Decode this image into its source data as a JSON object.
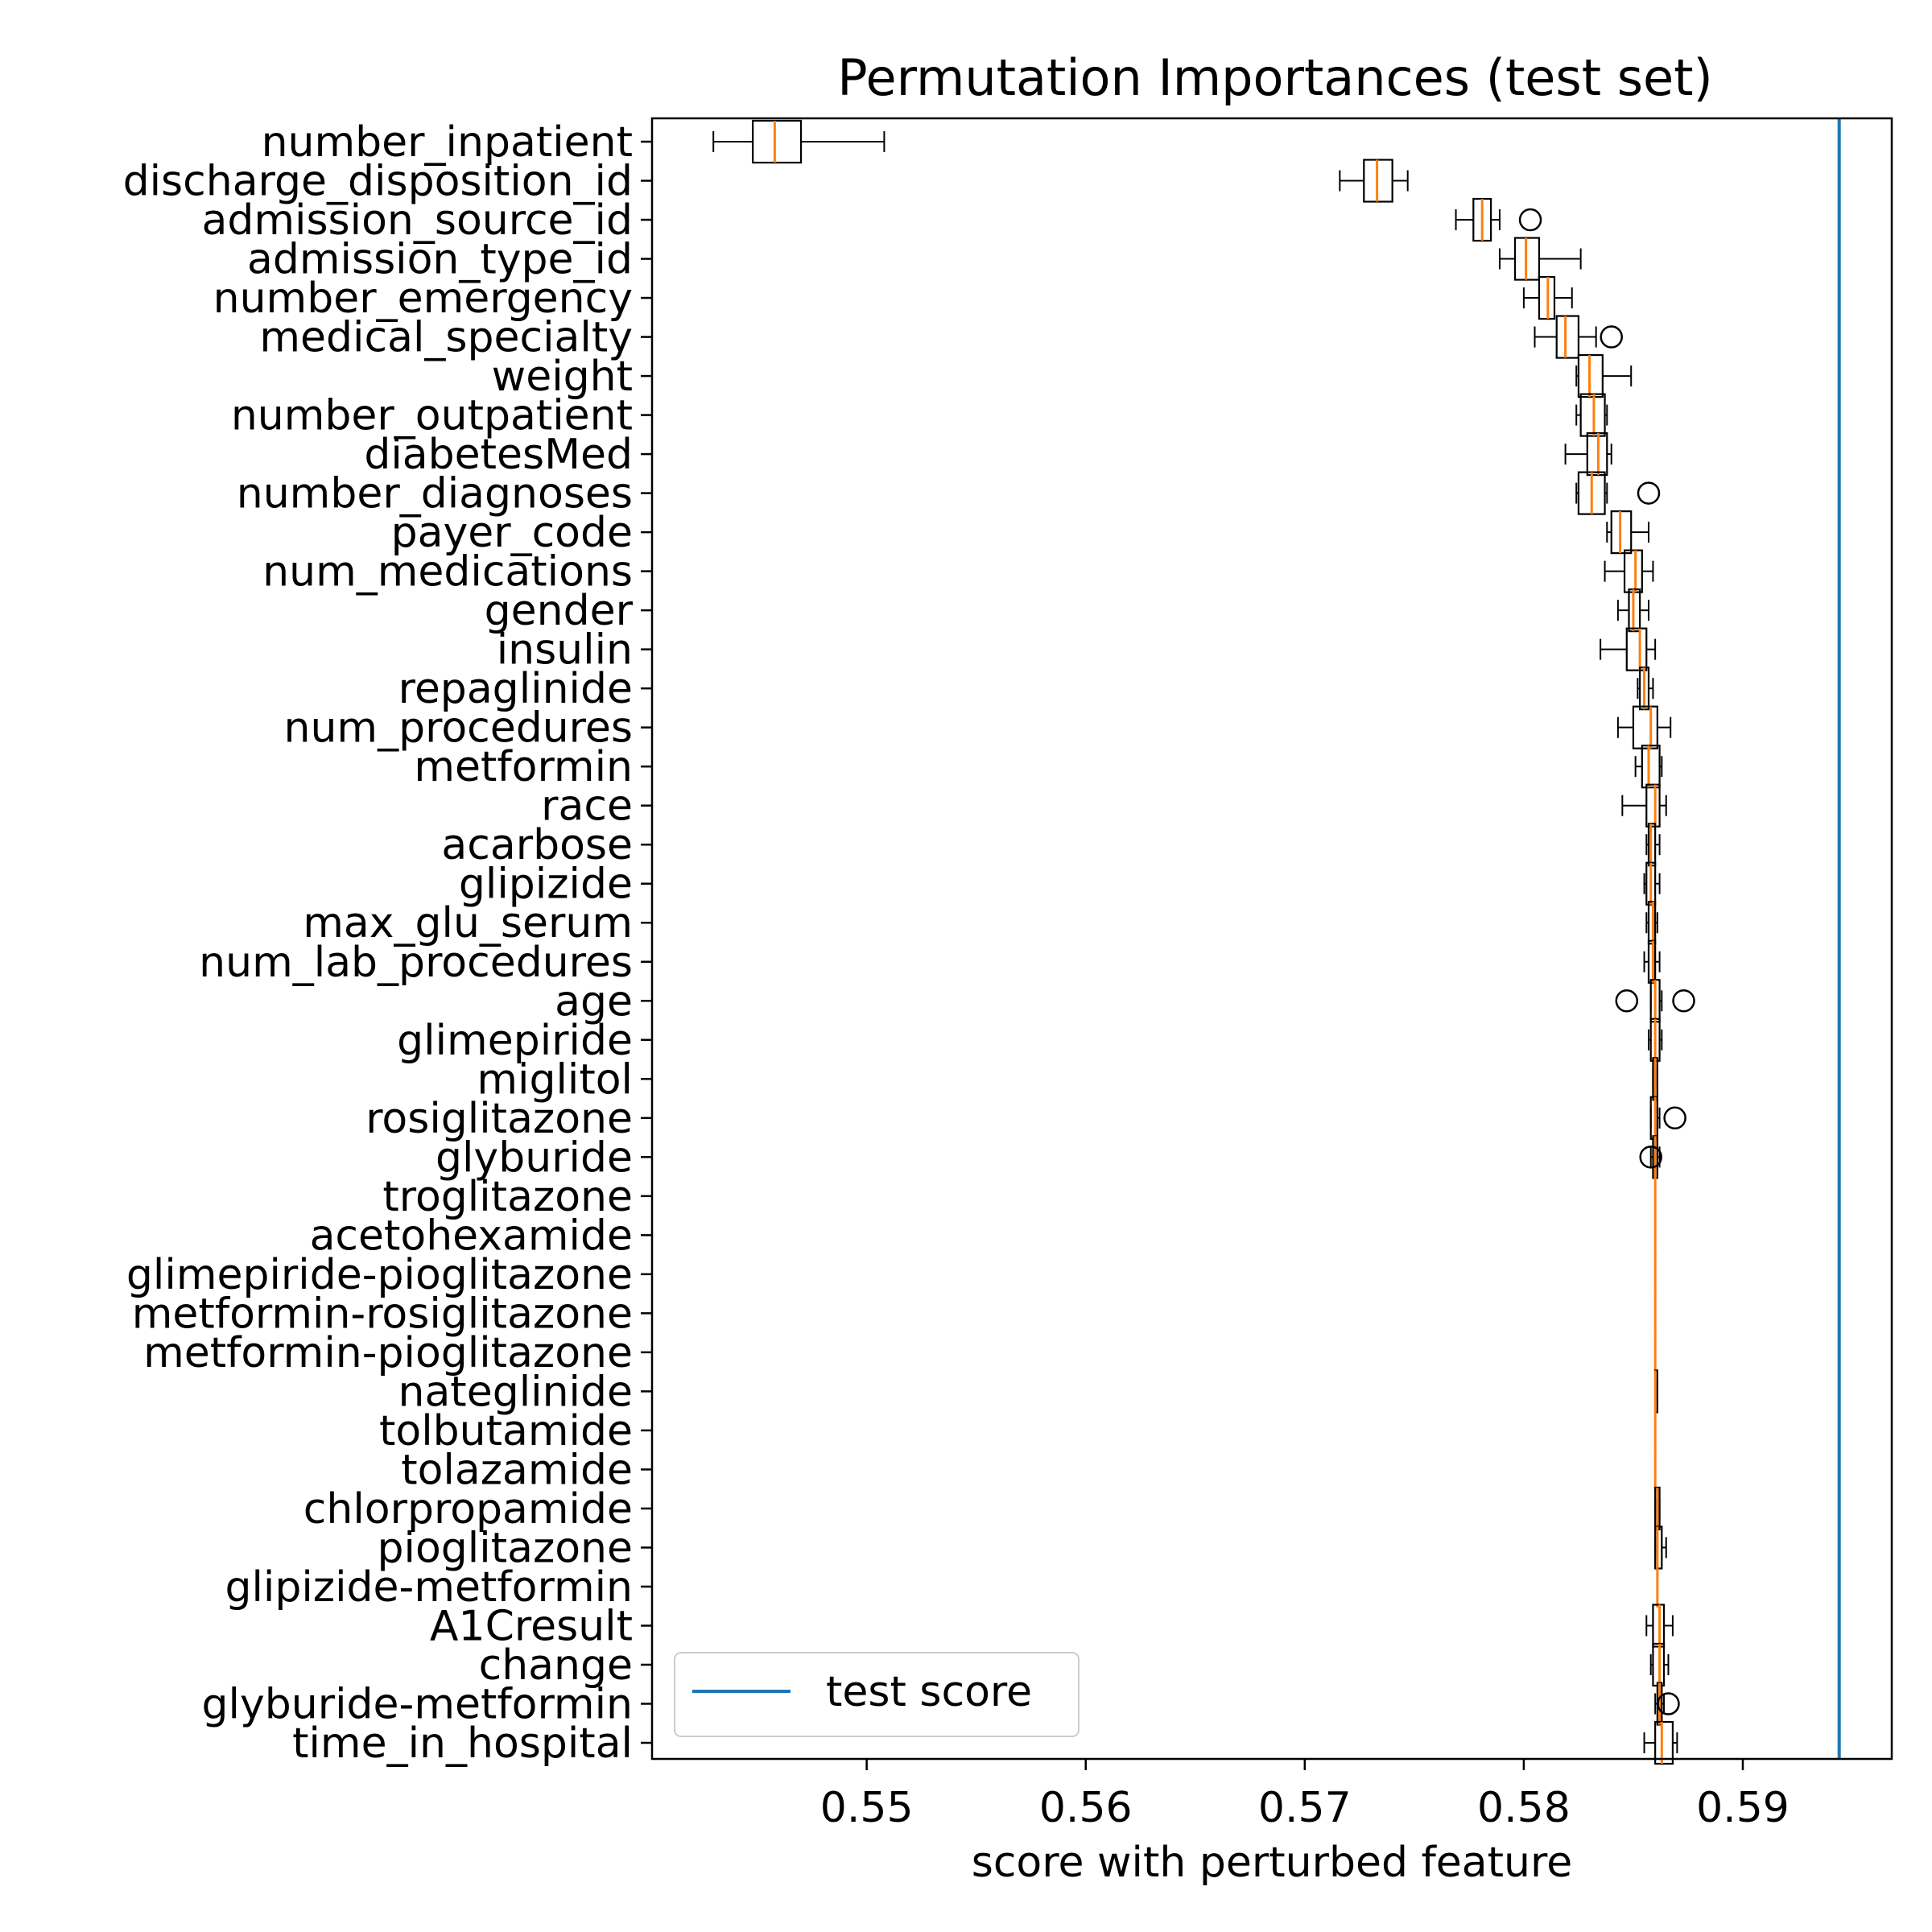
{
  "chart_data": {
    "type": "boxplot",
    "orientation": "horizontal",
    "title": "Permutation Importances (test set)",
    "xlabel": "score with perturbed feature",
    "ylabel": "",
    "xlim": [
      0.5402,
      0.5968
    ],
    "xticks": [
      0.55,
      0.56,
      0.57,
      0.58,
      0.59
    ],
    "xtick_labels": [
      "0.55",
      "0.56",
      "0.57",
      "0.58",
      "0.59"
    ],
    "grid": false,
    "reference_line": {
      "x": 0.5944,
      "label": "test score",
      "color": "#1f77b4"
    },
    "legend": {
      "position": "lower-left",
      "entries": [
        "test score"
      ]
    },
    "colors": {
      "box": "#000000",
      "median": "#ff7f0e",
      "reference": "#1f77b4"
    },
    "features": [
      {
        "name": "number_inpatient",
        "wlo": 0.543,
        "q1": 0.5448,
        "med": 0.5458,
        "q3": 0.547,
        "whi": 0.5508,
        "fliers": []
      },
      {
        "name": "discharge_disposition_id",
        "wlo": 0.5716,
        "q1": 0.5727,
        "med": 0.5733,
        "q3": 0.574,
        "whi": 0.5747,
        "fliers": []
      },
      {
        "name": "admission_source_id",
        "wlo": 0.5769,
        "q1": 0.5777,
        "med": 0.5781,
        "q3": 0.5785,
        "whi": 0.5789,
        "fliers": [
          0.5803
        ]
      },
      {
        "name": "admission_type_id",
        "wlo": 0.5789,
        "q1": 0.5796,
        "med": 0.5801,
        "q3": 0.5807,
        "whi": 0.5826,
        "fliers": []
      },
      {
        "name": "number_emergency",
        "wlo": 0.58,
        "q1": 0.5807,
        "med": 0.5811,
        "q3": 0.5814,
        "whi": 0.5822,
        "fliers": []
      },
      {
        "name": "medical_specialty",
        "wlo": 0.5805,
        "q1": 0.5815,
        "med": 0.5819,
        "q3": 0.5825,
        "whi": 0.5833,
        "fliers": [
          0.584
        ]
      },
      {
        "name": "weight",
        "wlo": 0.5824,
        "q1": 0.5825,
        "med": 0.583,
        "q3": 0.5836,
        "whi": 0.5849,
        "fliers": []
      },
      {
        "name": "number_outpatient",
        "wlo": 0.5824,
        "q1": 0.5826,
        "med": 0.5832,
        "q3": 0.5837,
        "whi": 0.5838,
        "fliers": []
      },
      {
        "name": "diabetesMed",
        "wlo": 0.5819,
        "q1": 0.5829,
        "med": 0.5834,
        "q3": 0.5838,
        "whi": 0.584,
        "fliers": []
      },
      {
        "name": "number_diagnoses",
        "wlo": 0.5824,
        "q1": 0.5825,
        "med": 0.5831,
        "q3": 0.5837,
        "whi": 0.5838,
        "fliers": [
          0.5857
        ]
      },
      {
        "name": "payer_code",
        "wlo": 0.5838,
        "q1": 0.584,
        "med": 0.5844,
        "q3": 0.5849,
        "whi": 0.5857,
        "fliers": []
      },
      {
        "name": "num_medications",
        "wlo": 0.5837,
        "q1": 0.5846,
        "med": 0.5851,
        "q3": 0.5854,
        "whi": 0.5859,
        "fliers": []
      },
      {
        "name": "gender",
        "wlo": 0.5843,
        "q1": 0.5848,
        "med": 0.585,
        "q3": 0.5853,
        "whi": 0.5857,
        "fliers": []
      },
      {
        "name": "insulin",
        "wlo": 0.5835,
        "q1": 0.5847,
        "med": 0.5853,
        "q3": 0.5856,
        "whi": 0.586,
        "fliers": []
      },
      {
        "name": "repaglinide",
        "wlo": 0.5852,
        "q1": 0.5853,
        "med": 0.5855,
        "q3": 0.5857,
        "whi": 0.5859,
        "fliers": []
      },
      {
        "name": "num_procedures",
        "wlo": 0.5843,
        "q1": 0.585,
        "med": 0.5858,
        "q3": 0.5861,
        "whi": 0.5867,
        "fliers": []
      },
      {
        "name": "metformin",
        "wlo": 0.5851,
        "q1": 0.5854,
        "med": 0.5857,
        "q3": 0.5862,
        "whi": 0.5863,
        "fliers": []
      },
      {
        "name": "race",
        "wlo": 0.5845,
        "q1": 0.5856,
        "med": 0.586,
        "q3": 0.5862,
        "whi": 0.5865,
        "fliers": []
      },
      {
        "name": "acarbose",
        "wlo": 0.5856,
        "q1": 0.5857,
        "med": 0.5858,
        "q3": 0.586,
        "whi": 0.5862,
        "fliers": []
      },
      {
        "name": "glipizide",
        "wlo": 0.5855,
        "q1": 0.5856,
        "med": 0.5858,
        "q3": 0.586,
        "whi": 0.5862,
        "fliers": []
      },
      {
        "name": "max_glu_serum",
        "wlo": 0.5856,
        "q1": 0.5857,
        "med": 0.5859,
        "q3": 0.586,
        "whi": 0.5861,
        "fliers": []
      },
      {
        "name": "num_lab_procedures",
        "wlo": 0.5855,
        "q1": 0.5857,
        "med": 0.5859,
        "q3": 0.586,
        "whi": 0.5862,
        "fliers": []
      },
      {
        "name": "age",
        "wlo": 0.5858,
        "q1": 0.5858,
        "med": 0.586,
        "q3": 0.5862,
        "whi": 0.5863,
        "fliers": [
          0.5847,
          0.5873
        ]
      },
      {
        "name": "glimepiride",
        "wlo": 0.5857,
        "q1": 0.5858,
        "med": 0.586,
        "q3": 0.5862,
        "whi": 0.5863,
        "fliers": []
      },
      {
        "name": "miglitol",
        "wlo": 0.5859,
        "q1": 0.5859,
        "med": 0.586,
        "q3": 0.5861,
        "whi": 0.5861,
        "fliers": []
      },
      {
        "name": "rosiglitazone",
        "wlo": 0.5858,
        "q1": 0.5858,
        "med": 0.586,
        "q3": 0.5861,
        "whi": 0.5862,
        "fliers": [
          0.5869
        ]
      },
      {
        "name": "glyburide",
        "wlo": 0.5858,
        "q1": 0.5859,
        "med": 0.586,
        "q3": 0.5861,
        "whi": 0.5862,
        "fliers": [
          0.5858
        ]
      },
      {
        "name": "troglitazone",
        "wlo": 0.586,
        "q1": 0.586,
        "med": 0.586,
        "q3": 0.586,
        "whi": 0.586,
        "fliers": []
      },
      {
        "name": "acetohexamide",
        "wlo": 0.586,
        "q1": 0.586,
        "med": 0.586,
        "q3": 0.586,
        "whi": 0.586,
        "fliers": []
      },
      {
        "name": "glimepiride-pioglitazone",
        "wlo": 0.586,
        "q1": 0.586,
        "med": 0.586,
        "q3": 0.586,
        "whi": 0.586,
        "fliers": []
      },
      {
        "name": "metformin-rosiglitazone",
        "wlo": 0.586,
        "q1": 0.586,
        "med": 0.586,
        "q3": 0.586,
        "whi": 0.586,
        "fliers": []
      },
      {
        "name": "metformin-pioglitazone",
        "wlo": 0.586,
        "q1": 0.586,
        "med": 0.586,
        "q3": 0.586,
        "whi": 0.586,
        "fliers": []
      },
      {
        "name": "nateglinide",
        "wlo": 0.586,
        "q1": 0.586,
        "med": 0.586,
        "q3": 0.5861,
        "whi": 0.5861,
        "fliers": []
      },
      {
        "name": "tolbutamide",
        "wlo": 0.586,
        "q1": 0.586,
        "med": 0.586,
        "q3": 0.586,
        "whi": 0.586,
        "fliers": []
      },
      {
        "name": "tolazamide",
        "wlo": 0.586,
        "q1": 0.586,
        "med": 0.586,
        "q3": 0.586,
        "whi": 0.586,
        "fliers": []
      },
      {
        "name": "chlorpropamide",
        "wlo": 0.586,
        "q1": 0.586,
        "med": 0.5861,
        "q3": 0.5862,
        "whi": 0.5862,
        "fliers": []
      },
      {
        "name": "pioglitazone",
        "wlo": 0.586,
        "q1": 0.586,
        "med": 0.5861,
        "q3": 0.5863,
        "whi": 0.5865,
        "fliers": []
      },
      {
        "name": "glipizide-metformin",
        "wlo": 0.5861,
        "q1": 0.5861,
        "med": 0.5861,
        "q3": 0.5861,
        "whi": 0.5861,
        "fliers": []
      },
      {
        "name": "A1Cresult",
        "wlo": 0.5856,
        "q1": 0.5859,
        "med": 0.5862,
        "q3": 0.5864,
        "whi": 0.5868,
        "fliers": []
      },
      {
        "name": "change",
        "wlo": 0.5858,
        "q1": 0.5859,
        "med": 0.5862,
        "q3": 0.5864,
        "whi": 0.5866,
        "fliers": []
      },
      {
        "name": "glyburide-metformin",
        "wlo": 0.586,
        "q1": 0.5861,
        "med": 0.5862,
        "q3": 0.5863,
        "whi": 0.5864,
        "fliers": [
          0.5866
        ]
      },
      {
        "name": "time_in_hospital",
        "wlo": 0.5855,
        "q1": 0.586,
        "med": 0.5863,
        "q3": 0.5868,
        "whi": 0.587,
        "fliers": []
      }
    ]
  }
}
